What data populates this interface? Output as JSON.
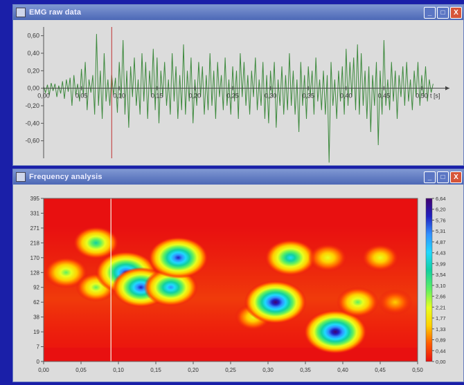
{
  "window1": {
    "title": "EMG raw data",
    "controls": [
      "_",
      "□",
      "X"
    ],
    "chart_data": {
      "type": "line",
      "title": "",
      "xlabel": "t [s]",
      "ylabel": "",
      "xlim": [
        0,
        0.5
      ],
      "ylim": [
        -0.8,
        0.7
      ],
      "x_ticks": [
        "0,00",
        "0,05",
        "0,10",
        "0,15",
        "0,20",
        "0,25",
        "0,30",
        "0,35",
        "0,40",
        "0,45",
        "0,50"
      ],
      "y_ticks": [
        "0,60",
        "0,40",
        "0,20",
        "0,00",
        "-0,20",
        "-0,40",
        "-0,60"
      ],
      "y_tick_values": [
        0.6,
        0.4,
        0.2,
        0.0,
        -0.2,
        -0.4,
        -0.6
      ],
      "cursor_x": 0.09,
      "series": [
        {
          "color": "#3e8a3e",
          "x_step": 0.0025,
          "values": [
            0.02,
            -0.05,
            0.04,
            -0.08,
            0.06,
            -0.03,
            0.05,
            -0.1,
            0.03,
            -0.06,
            0.08,
            -0.12,
            0.1,
            -0.04,
            0.12,
            -0.2,
            0.15,
            -0.08,
            0.05,
            -0.15,
            0.22,
            -0.1,
            0.3,
            -0.25,
            0.1,
            -0.05,
            0.15,
            -0.3,
            0.62,
            -0.2,
            0.2,
            -0.35,
            0.4,
            -0.15,
            0.1,
            -0.2,
            0.15,
            -0.08,
            0.12,
            -0.28,
            0.3,
            -0.12,
            0.55,
            -0.3,
            0.2,
            -0.45,
            0.25,
            -0.1,
            0.35,
            -0.2,
            0.1,
            -0.3,
            0.4,
            -0.15,
            0.3,
            -0.35,
            0.2,
            -0.1,
            0.45,
            -0.25,
            0.35,
            -0.4,
            0.2,
            -0.1,
            0.3,
            -0.2,
            0.1,
            -0.3,
            0.4,
            -0.15,
            0.25,
            -0.35,
            0.15,
            -0.25,
            0.5,
            -0.3,
            0.2,
            -0.15,
            0.35,
            -0.4,
            0.1,
            -0.2,
            0.3,
            -0.1,
            0.25,
            -0.3,
            0.15,
            -0.25,
            0.4,
            -0.2,
            0.2,
            -0.35,
            0.3,
            -0.1,
            0.15,
            -0.25,
            0.35,
            -0.2,
            0.1,
            -0.3,
            0.25,
            -0.15,
            0.2,
            -0.35,
            0.4,
            -0.1,
            0.3,
            -0.2,
            0.15,
            -0.3,
            0.2,
            -0.1,
            0.35,
            -0.25,
            0.1,
            -0.2,
            0.3,
            -0.35,
            0.15,
            -0.4,
            0.2,
            -0.1,
            0.3,
            -0.45,
            0.1,
            -0.2,
            0.25,
            -0.3,
            0.15,
            -0.25,
            0.4,
            -0.2,
            0.2,
            -0.3,
            0.1,
            -0.5,
            0.3,
            -0.2,
            0.15,
            -0.35,
            0.25,
            -0.1,
            0.2,
            -0.3,
            0.35,
            -0.15,
            0.1,
            -0.25,
            0.2,
            -0.3,
            0.15,
            -0.85,
            0.3,
            -0.2,
            0.1,
            -0.35,
            0.2,
            -0.15,
            0.25,
            -0.3,
            0.45,
            -0.2,
            0.3,
            -0.1,
            0.35,
            -0.25,
            0.5,
            -0.3,
            0.4,
            -0.2,
            0.2,
            -0.35,
            0.25,
            -0.5,
            0.15,
            -0.2,
            0.3,
            -0.65,
            0.2,
            -0.3,
            0.55,
            -0.2,
            0.1,
            -0.25,
            0.3,
            -0.15,
            0.2,
            -0.35,
            0.15,
            -0.1,
            0.25,
            -0.2,
            0.3,
            -0.15,
            0.1,
            -0.25,
            0.2,
            -0.1,
            0.3,
            -0.2,
            0.15,
            -0.1,
            0.25,
            -0.15,
            0.1,
            -0.05,
            0.05
          ]
        }
      ]
    }
  },
  "window2": {
    "title": "Frequency analysis",
    "controls": [
      "_",
      "□",
      "X"
    ],
    "chart_data": {
      "type": "heatmap",
      "title": "",
      "xlabel": "",
      "ylabel": "",
      "xlim": [
        0,
        0.5
      ],
      "x_ticks": [
        "0,00",
        "0,05",
        "0,10",
        "0,15",
        "0,20",
        "0,25",
        "0,30",
        "0,35",
        "0,40",
        "0,45",
        "0,50"
      ],
      "y_ticks": [
        "395",
        "331",
        "271",
        "218",
        "170",
        "128",
        "92",
        "62",
        "38",
        "19",
        "7",
        "0"
      ],
      "cursor_x": 0.09,
      "colorbar_ticks": [
        "6,64",
        "6,20",
        "5,76",
        "5,31",
        "4,87",
        "4,43",
        "3,99",
        "3,54",
        "3,10",
        "2,66",
        "2,21",
        "1,77",
        "1,33",
        "0,89",
        "0,44",
        "0,00"
      ],
      "colorbar_range": [
        0,
        6.64
      ],
      "colorscale": [
        "#e81010",
        "#ff5a00",
        "#ffd000",
        "#e8ff20",
        "#60f060",
        "#10d0a0",
        "#20d8ff",
        "#3090ff",
        "#2020c0",
        "#400070"
      ],
      "blobs": [
        {
          "t": 0.03,
          "band": 128,
          "level": 3.2
        },
        {
          "t": 0.07,
          "band": 218,
          "level": 3.6
        },
        {
          "t": 0.07,
          "band": 92,
          "level": 2.6
        },
        {
          "t": 0.11,
          "band": 128,
          "level": 6.2
        },
        {
          "t": 0.13,
          "band": 92,
          "level": 5.6
        },
        {
          "t": 0.17,
          "band": 92,
          "level": 5.0
        },
        {
          "t": 0.18,
          "band": 170,
          "level": 6.0
        },
        {
          "t": 0.28,
          "band": 38,
          "level": 2.0
        },
        {
          "t": 0.31,
          "band": 62,
          "level": 6.4
        },
        {
          "t": 0.33,
          "band": 170,
          "level": 4.6
        },
        {
          "t": 0.39,
          "band": 19,
          "level": 6.6
        },
        {
          "t": 0.38,
          "band": 170,
          "level": 2.4
        },
        {
          "t": 0.42,
          "band": 62,
          "level": 3.0
        },
        {
          "t": 0.45,
          "band": 170,
          "level": 2.2
        },
        {
          "t": 0.47,
          "band": 62,
          "level": 1.8
        }
      ]
    }
  }
}
